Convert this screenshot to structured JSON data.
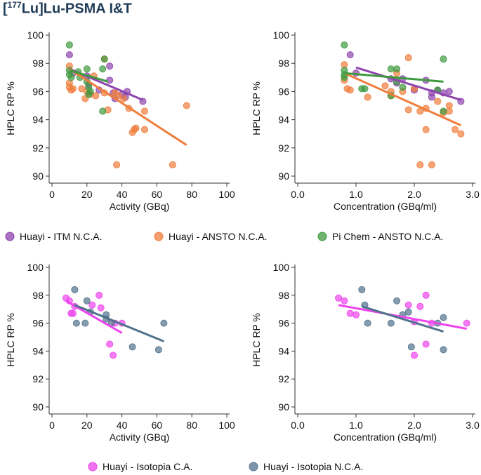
{
  "figure": {
    "title_prefix": "[",
    "title_isotope_mass": "177",
    "title_rest": "Lu]Lu-PSMA I&T",
    "colors": {
      "purple": "#8e44ad",
      "orange": "#f07d3c",
      "green": "#3f9a3f",
      "magenta": "#ee44ee",
      "slate": "#51728c"
    }
  },
  "legend_top": [
    {
      "label": "Huayi - ITM N.C.A.",
      "color": "#8e44ad"
    },
    {
      "label": "Huayi - ANSTO N.C.A.",
      "color": "#f07d3c"
    },
    {
      "label": "Pi Chem - ANSTO N.C.A.",
      "color": "#3f9a3f"
    }
  ],
  "legend_bottom": [
    {
      "label": "Huayi - Isotopia C.A.",
      "color": "#ee44ee"
    },
    {
      "label": "Huayi - Isotopia N.C.A.",
      "color": "#51728c"
    }
  ],
  "chart_data": [
    {
      "type": "scatter",
      "xlabel": "Activity (GBq)",
      "ylabel": "HPLC RP %",
      "xlim": [
        0,
        100
      ],
      "ylim": [
        90,
        100
      ],
      "xticks": [
        "0",
        "20",
        "40",
        "60",
        "80",
        "100"
      ],
      "yticks": [
        "90",
        "92",
        "94",
        "96",
        "98",
        "100"
      ],
      "series": [
        {
          "name": "Huayi - ITM N.C.A.",
          "color": "#8e44ad",
          "points": [
            [
              10,
              98.6
            ],
            [
              12,
              97.3
            ],
            [
              20,
              97.1
            ],
            [
              21,
              96.5
            ],
            [
              27,
              96.1
            ],
            [
              33,
              97.8
            ],
            [
              33,
              96.8
            ],
            [
              35,
              95.9
            ],
            [
              36,
              95.5
            ],
            [
              40,
              95.8
            ],
            [
              42,
              95.6
            ],
            [
              43,
              96.0
            ],
            [
              52,
              95.3
            ]
          ],
          "fit": [
            [
              10,
              97.6
            ],
            [
              52,
              95.4
            ]
          ]
        },
        {
          "name": "Huayi - ANSTO N.C.A.",
          "color": "#f07d3c",
          "points": [
            [
              10,
              97.8
            ],
            [
              10,
              96.6
            ],
            [
              10,
              96.3
            ],
            [
              11,
              96.1
            ],
            [
              12,
              96.2
            ],
            [
              17,
              96.2
            ],
            [
              19,
              95.5
            ],
            [
              20,
              96.0
            ],
            [
              22,
              95.8
            ],
            [
              24,
              97.1
            ],
            [
              25,
              95.7
            ],
            [
              30,
              98.3
            ],
            [
              30,
              95.9
            ],
            [
              32,
              94.7
            ],
            [
              36,
              95.9
            ],
            [
              37,
              90.8
            ],
            [
              38,
              95.7
            ],
            [
              41,
              95.5
            ],
            [
              44,
              94.8
            ],
            [
              46,
              93.1
            ],
            [
              47,
              93.3
            ],
            [
              48,
              93.4
            ],
            [
              53,
              94.6
            ],
            [
              53,
              93.3
            ],
            [
              69,
              90.8
            ],
            [
              77,
              95.0
            ]
          ],
          "fit": [
            [
              10,
              97.6
            ],
            [
              77,
              92.2
            ]
          ]
        },
        {
          "name": "Pi Chem - ANSTO N.C.A.",
          "color": "#3f9a3f",
          "points": [
            [
              10,
              99.3
            ],
            [
              10,
              97.5
            ],
            [
              10,
              97.2
            ],
            [
              11,
              97.0
            ],
            [
              15,
              97.4
            ],
            [
              16,
              97.0
            ],
            [
              20,
              97.6
            ],
            [
              20,
              96.7
            ],
            [
              21,
              96.3
            ],
            [
              22,
              96.0
            ],
            [
              21,
              95.8
            ],
            [
              29,
              97.6
            ],
            [
              30,
              98.3
            ],
            [
              29,
              94.6
            ]
          ],
          "fit": [
            [
              10,
              97.5
            ],
            [
              32,
              96.7
            ]
          ]
        }
      ]
    },
    {
      "type": "scatter",
      "xlabel": "Concentration (GBq/ml)",
      "ylabel": "HPLC RP %",
      "xlim": [
        0,
        3
      ],
      "ylim": [
        90,
        100
      ],
      "xticks": [
        "0.0",
        "1.0",
        "2.0",
        "3.0"
      ],
      "yticks": [
        "90",
        "92",
        "94",
        "96",
        "98",
        "100"
      ],
      "series": [
        {
          "name": "Huayi - ITM N.C.A.",
          "color": "#8e44ad",
          "points": [
            [
              0.9,
              98.6
            ],
            [
              1.0,
              97.3
            ],
            [
              1.6,
              96.9
            ],
            [
              1.7,
              96.6
            ],
            [
              1.8,
              96.9
            ],
            [
              2.0,
              96.1
            ],
            [
              2.2,
              96.8
            ],
            [
              2.3,
              95.9
            ],
            [
              2.3,
              95.6
            ],
            [
              2.4,
              96.1
            ],
            [
              2.5,
              95.9
            ],
            [
              2.6,
              96.0
            ],
            [
              2.8,
              95.3
            ]
          ],
          "fit": [
            [
              1.0,
              97.7
            ],
            [
              2.8,
              95.4
            ]
          ]
        },
        {
          "name": "Huayi - ANSTO N.C.A.",
          "color": "#f07d3c",
          "points": [
            [
              0.8,
              97.9
            ],
            [
              0.8,
              96.8
            ],
            [
              0.85,
              96.2
            ],
            [
              0.9,
              96.1
            ],
            [
              1.2,
              95.6
            ],
            [
              1.5,
              96.4
            ],
            [
              1.6,
              96.0
            ],
            [
              1.6,
              95.7
            ],
            [
              1.7,
              97.3
            ],
            [
              1.8,
              96.0
            ],
            [
              1.9,
              98.4
            ],
            [
              1.9,
              94.7
            ],
            [
              2.0,
              96.2
            ],
            [
              2.1,
              90.8
            ],
            [
              2.1,
              94.6
            ],
            [
              2.2,
              93.3
            ],
            [
              2.2,
              94.8
            ],
            [
              2.3,
              90.8
            ],
            [
              2.4,
              95.3
            ],
            [
              2.5,
              94.5
            ],
            [
              2.6,
              95.0
            ],
            [
              2.6,
              94.6
            ],
            [
              2.7,
              93.3
            ],
            [
              2.8,
              93.0
            ]
          ],
          "fit": [
            [
              0.8,
              97.3
            ],
            [
              2.8,
              93.6
            ]
          ]
        },
        {
          "name": "Pi Chem - ANSTO N.C.A.",
          "color": "#3f9a3f",
          "points": [
            [
              0.8,
              99.3
            ],
            [
              0.8,
              97.5
            ],
            [
              0.8,
              97.2
            ],
            [
              0.8,
              97.0
            ],
            [
              1.1,
              96.2
            ],
            [
              1.15,
              96.2
            ],
            [
              1.6,
              97.6
            ],
            [
              1.6,
              95.7
            ],
            [
              1.7,
              97.6
            ],
            [
              1.7,
              96.7
            ],
            [
              1.8,
              96.3
            ],
            [
              2.4,
              96.1
            ],
            [
              2.5,
              98.3
            ],
            [
              2.5,
              94.6
            ]
          ],
          "fit": [
            [
              0.8,
              97.3
            ],
            [
              2.5,
              96.7
            ]
          ]
        }
      ]
    },
    {
      "type": "scatter",
      "xlabel": "Activity (GBq)",
      "ylabel": "HPLC RP %",
      "xlim": [
        0,
        100
      ],
      "ylim": [
        90,
        100
      ],
      "xticks": [
        "0",
        "20",
        "40",
        "60",
        "80",
        "100"
      ],
      "yticks": [
        "90",
        "92",
        "94",
        "96",
        "98",
        "100"
      ],
      "series": [
        {
          "name": "Huayi - Isotopia C.A.",
          "color": "#ee44ee",
          "points": [
            [
              8,
              97.8
            ],
            [
              10,
              97.6
            ],
            [
              11,
              96.7
            ],
            [
              12,
              96.7
            ],
            [
              13,
              97.2
            ],
            [
              23,
              97.3
            ],
            [
              27,
              98.0
            ],
            [
              28,
              97.1
            ],
            [
              33,
              94.5
            ],
            [
              35,
              93.7
            ],
            [
              36,
              96.0
            ],
            [
              40,
              96.0
            ]
          ],
          "fit": [
            [
              8,
              97.6
            ],
            [
              40,
              95.3
            ]
          ]
        },
        {
          "name": "Huayi - Isotopia N.C.A.",
          "color": "#51728c",
          "points": [
            [
              13,
              98.4
            ],
            [
              14,
              96.0
            ],
            [
              19,
              96.0
            ],
            [
              22,
              96.8
            ],
            [
              20,
              97.6
            ],
            [
              31,
              96.6
            ],
            [
              31,
              96.3
            ],
            [
              34,
              96.0
            ],
            [
              46,
              94.3
            ],
            [
              61,
              94.1
            ],
            [
              64,
              96.0
            ]
          ],
          "fit": [
            [
              13,
              97.3
            ],
            [
              64,
              94.7
            ]
          ]
        }
      ]
    },
    {
      "type": "scatter",
      "xlabel": "Concentration (GBq/ml)",
      "ylabel": "HPLC RP %",
      "xlim": [
        0,
        3
      ],
      "ylim": [
        90,
        100
      ],
      "xticks": [
        "0.0",
        "1.0",
        "2.0",
        "3.0"
      ],
      "yticks": [
        "90",
        "92",
        "94",
        "96",
        "98",
        "100"
      ],
      "series": [
        {
          "name": "Huayi - Isotopia C.A.",
          "color": "#ee44ee",
          "points": [
            [
              0.7,
              97.8
            ],
            [
              0.8,
              97.6
            ],
            [
              0.9,
              96.7
            ],
            [
              1.0,
              96.6
            ],
            [
              1.9,
              97.3
            ],
            [
              2.0,
              93.7
            ],
            [
              2.0,
              96.1
            ],
            [
              2.1,
              97.2
            ],
            [
              2.2,
              98.0
            ],
            [
              2.2,
              94.5
            ],
            [
              2.3,
              96.0
            ],
            [
              2.9,
              96.0
            ]
          ],
          "fit": [
            [
              0.7,
              97.3
            ],
            [
              2.9,
              95.6
            ]
          ]
        },
        {
          "name": "Huayi - Isotopia N.C.A.",
          "color": "#51728c",
          "points": [
            [
              1.1,
              98.4
            ],
            [
              1.15,
              97.3
            ],
            [
              1.2,
              96.0
            ],
            [
              1.6,
              96.0
            ],
            [
              1.7,
              97.6
            ],
            [
              1.8,
              96.6
            ],
            [
              1.9,
              96.8
            ],
            [
              1.95,
              94.3
            ],
            [
              2.4,
              96.0
            ],
            [
              2.5,
              94.1
            ],
            [
              2.5,
              96.4
            ]
          ],
          "fit": [
            [
              1.1,
              97.2
            ],
            [
              2.5,
              95.4
            ]
          ]
        }
      ]
    }
  ]
}
